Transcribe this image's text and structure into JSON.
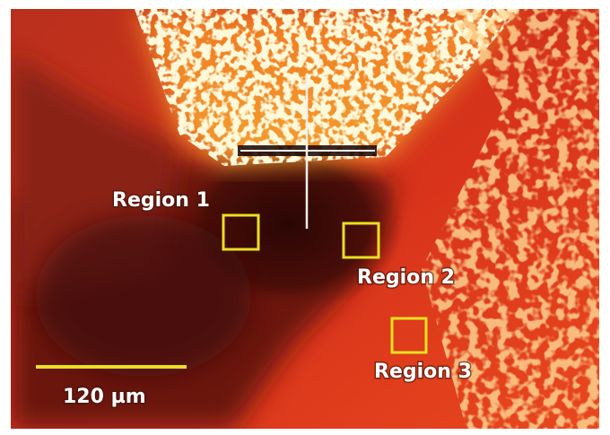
{
  "regions": [
    {
      "label": "Region 1"
    },
    {
      "label": "Region 2"
    },
    {
      "label": "Region 3"
    }
  ],
  "scale_bar": {
    "label": "120 µm"
  }
}
